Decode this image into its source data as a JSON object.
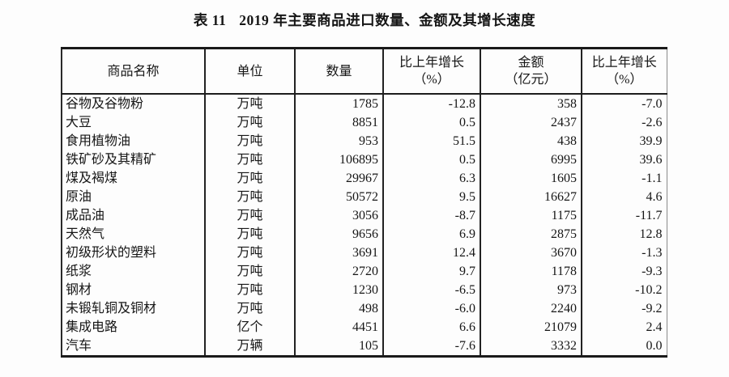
{
  "title": {
    "prefix": "表 11",
    "text": "2019 年主要商品进口数量、金额及其增长速度"
  },
  "table": {
    "columns": [
      {
        "label": "商品名称",
        "sub": ""
      },
      {
        "label": "单位",
        "sub": ""
      },
      {
        "label": "数量",
        "sub": ""
      },
      {
        "label": "比上年增长",
        "sub": "（%）"
      },
      {
        "label": "金额",
        "sub": "（亿元）"
      },
      {
        "label": "比上年增长",
        "sub": "（%）"
      }
    ],
    "rows": [
      [
        "谷物及谷物粉",
        "万吨",
        "1785",
        "-12.8",
        "358",
        "-7.0"
      ],
      [
        "大豆",
        "万吨",
        "8851",
        "0.5",
        "2437",
        "-2.6"
      ],
      [
        "食用植物油",
        "万吨",
        "953",
        "51.5",
        "438",
        "39.9"
      ],
      [
        "铁矿砂及其精矿",
        "万吨",
        "106895",
        "0.5",
        "6995",
        "39.6"
      ],
      [
        "煤及褐煤",
        "万吨",
        "29967",
        "6.3",
        "1605",
        "-1.1"
      ],
      [
        "原油",
        "万吨",
        "50572",
        "9.5",
        "16627",
        "4.6"
      ],
      [
        "成品油",
        "万吨",
        "3056",
        "-8.7",
        "1175",
        "-11.7"
      ],
      [
        "天然气",
        "万吨",
        "9656",
        "6.9",
        "2875",
        "12.8"
      ],
      [
        "初级形状的塑料",
        "万吨",
        "3691",
        "12.4",
        "3670",
        "-1.3"
      ],
      [
        "纸浆",
        "万吨",
        "2720",
        "9.7",
        "1178",
        "-9.3"
      ],
      [
        "钢材",
        "万吨",
        "1230",
        "-6.5",
        "973",
        "-10.2"
      ],
      [
        "未锻轧铜及铜材",
        "万吨",
        "498",
        "-6.0",
        "2240",
        "-9.2"
      ],
      [
        "集成电路",
        "亿个",
        "4451",
        "6.6",
        "21079",
        "2.4"
      ],
      [
        "汽车",
        "万辆",
        "105",
        "-7.6",
        "3332",
        "0.0"
      ]
    ],
    "cell_names": [
      "commodity-name",
      "unit",
      "quantity",
      "quantity-growth",
      "value",
      "value-growth"
    ]
  },
  "colors": {
    "background": "#fdfdfd",
    "text": "#161616",
    "border": "#1a1a1a"
  }
}
